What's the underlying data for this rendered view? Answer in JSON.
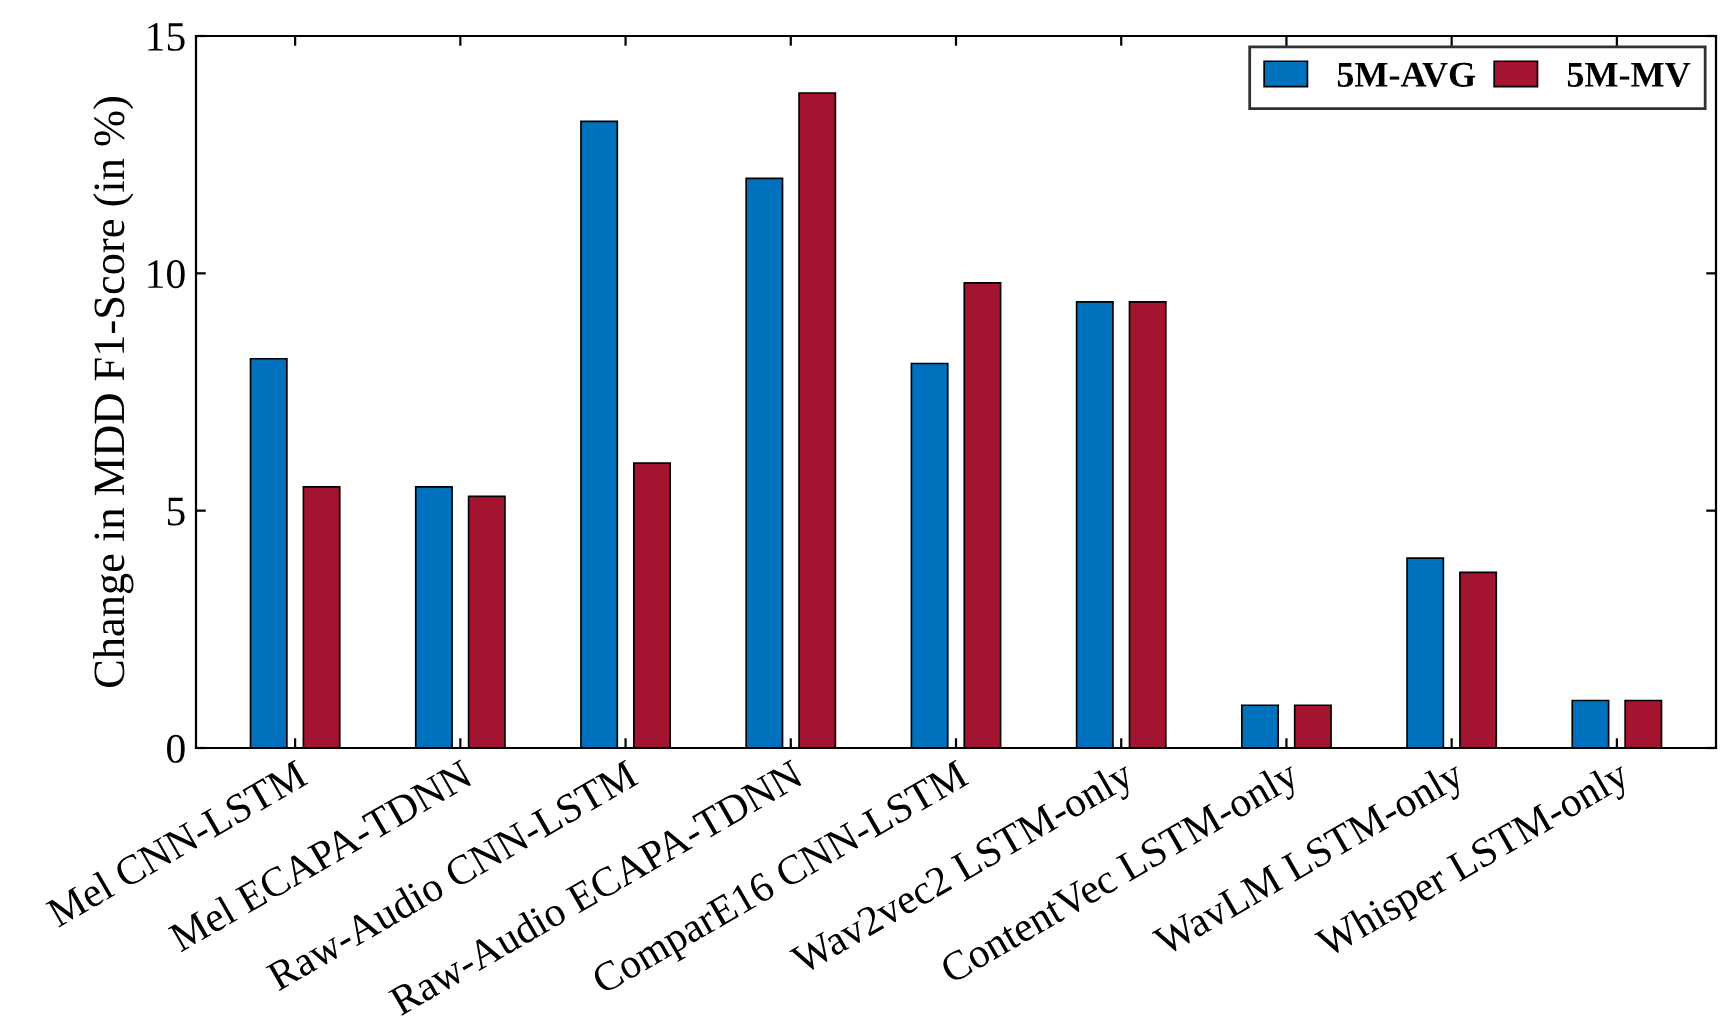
{
  "chart_data": {
    "type": "bar",
    "ylabel": "Change in MDD F1-Score (in %)",
    "categories": [
      "Mel CNN-LSTM",
      "Mel ECAPA-TDNN",
      "Raw-Audio CNN-LSTM",
      "Raw-Audio ECAPA-TDNN",
      "ComparE16 CNN-LSTM",
      "Wav2vec2 LSTM-only",
      "ContentVec LSTM-only",
      "WavLM LSTM-only",
      "Whisper LSTM-only"
    ],
    "series": [
      {
        "name": "5M-AVG",
        "color": "#0072bd",
        "values": [
          8.2,
          5.5,
          13.2,
          12.0,
          8.1,
          9.4,
          0.9,
          4.0,
          1.0
        ]
      },
      {
        "name": "5M-MV",
        "color": "#a2142f",
        "values": [
          5.5,
          5.3,
          6.0,
          13.8,
          9.8,
          9.4,
          0.9,
          3.7,
          1.0
        ]
      }
    ],
    "ylim": [
      0,
      15
    ],
    "yticks": [
      0,
      5,
      10,
      15
    ],
    "grid": false,
    "legend": "top right"
  }
}
